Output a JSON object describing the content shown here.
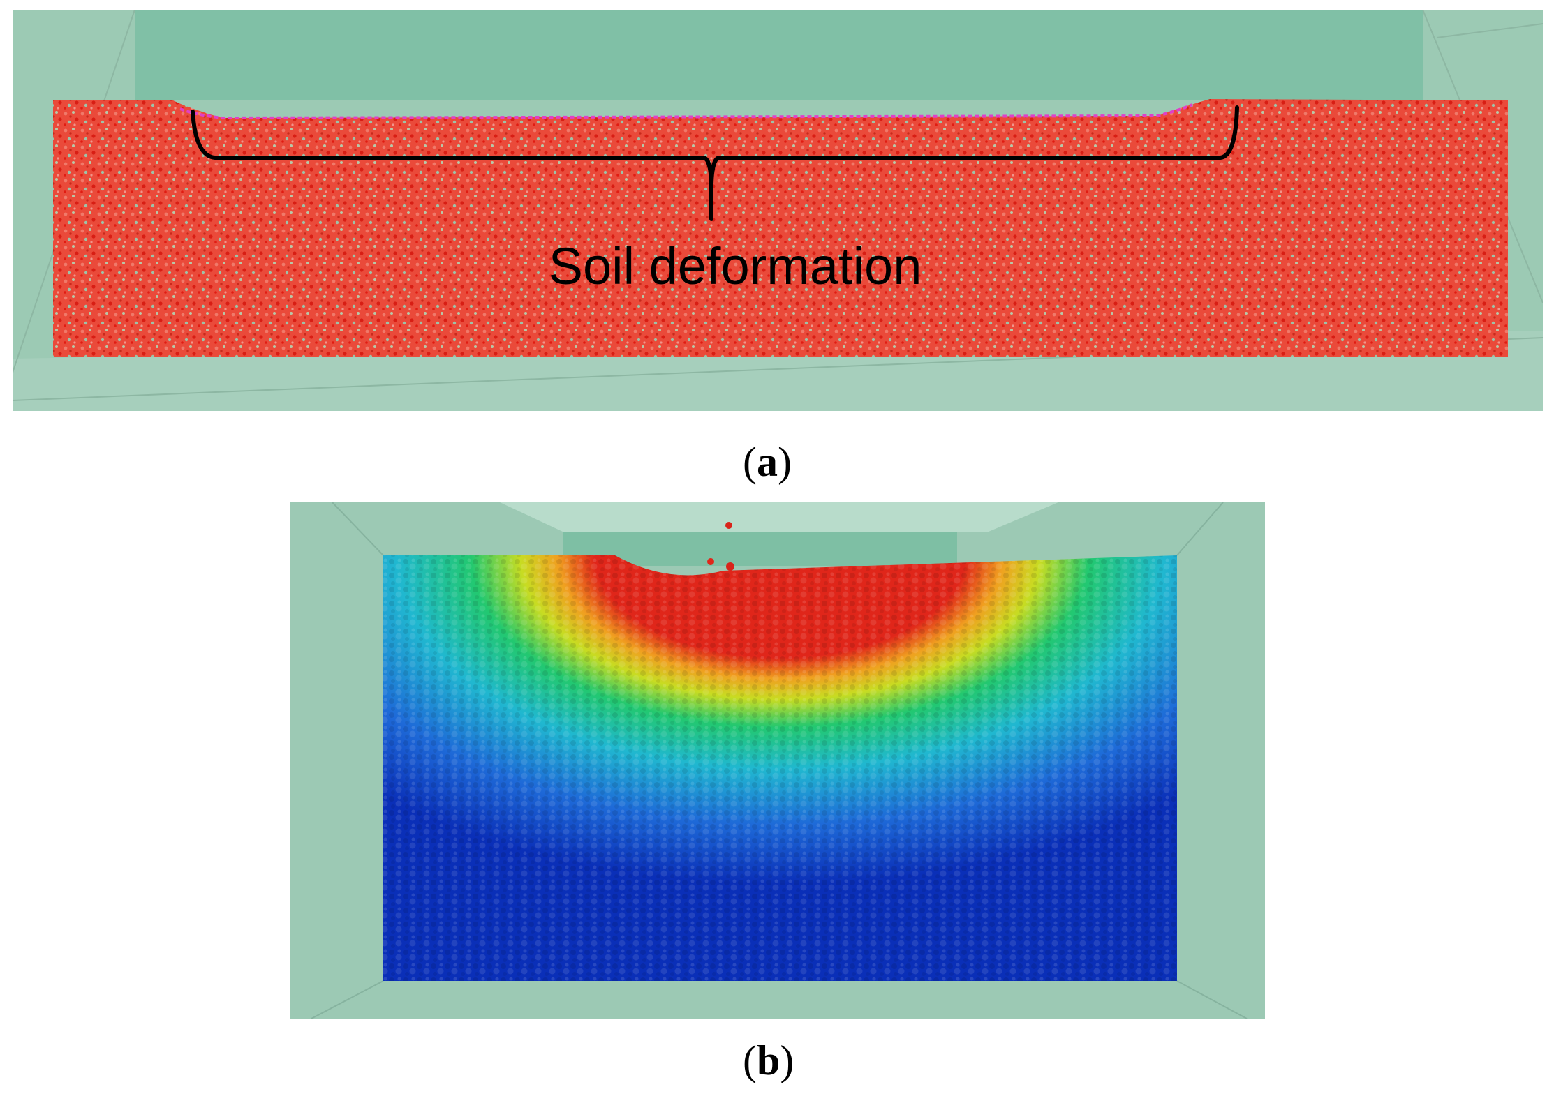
{
  "panels": [
    {
      "id": "a",
      "caption_open": "(",
      "caption_letter": "a",
      "caption_close": ")",
      "annotation": "Soil deformation",
      "particle_color": "#e8281e",
      "surface_color": "#e040c8",
      "background_color": "#86c3a8"
    },
    {
      "id": "b",
      "caption_open": "(",
      "caption_letter": "b",
      "caption_close": ")",
      "colormap": [
        "#0a2fb8",
        "#1e6ad8",
        "#20b8d0",
        "#22c870",
        "#c8dc22",
        "#f0a020",
        "#e0261a"
      ],
      "background_color": "#9cc9b4"
    }
  ]
}
